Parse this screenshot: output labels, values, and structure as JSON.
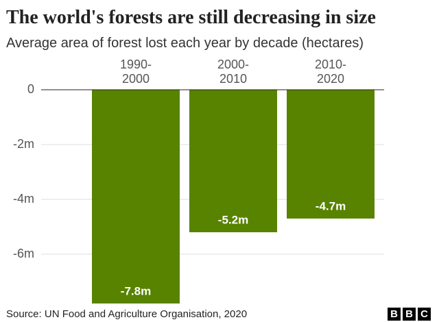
{
  "chart_data": {
    "type": "bar",
    "title": "The world's forests are still decreasing in size",
    "subtitle": "Average area of forest lost each year by decade (hectares)",
    "categories": [
      "1990-2000",
      "2000-2010",
      "2010-2020"
    ],
    "values": [
      -7800000,
      -5200000,
      -4700000
    ],
    "value_labels": [
      "-7.8m",
      "-5.2m",
      "-4.7m"
    ],
    "color": "#588300",
    "ylim": [
      -8000000,
      0
    ],
    "yticks": [
      0,
      {
        "value": -2000000,
        "label": "-2m"
      },
      {
        "value": -4000000,
        "label": "-4m"
      },
      {
        "value": -6000000,
        "label": "-6m"
      }
    ],
    "grid": true,
    "source": "Source: UN Food and Agriculture Organisation, 2020",
    "logo": [
      "B",
      "B",
      "C"
    ]
  }
}
